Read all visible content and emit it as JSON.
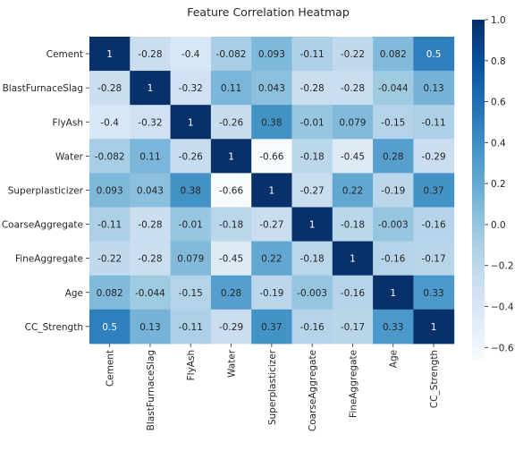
{
  "chart_data": {
    "type": "heatmap",
    "title": "Feature Correlation Heatmap",
    "row_labels": [
      "Cement",
      "BlastFurnaceSlag",
      "FlyAsh",
      "Water",
      "Superplasticizer",
      "CoarseAggregate",
      "FineAggregate",
      "Age",
      "CC_Strength"
    ],
    "col_labels": [
      "Cement",
      "BlastFurnaceSlag",
      "FlyAsh",
      "Water",
      "Superplasticizer",
      "CoarseAggregate",
      "FineAggregate",
      "Age",
      "CC_Strength"
    ],
    "values": [
      [
        1,
        -0.28,
        -0.4,
        -0.082,
        0.093,
        -0.11,
        -0.22,
        0.082,
        0.5
      ],
      [
        -0.28,
        1,
        -0.32,
        0.11,
        0.043,
        -0.28,
        -0.28,
        -0.044,
        0.13
      ],
      [
        -0.4,
        -0.32,
        1,
        -0.26,
        0.38,
        -0.01,
        0.079,
        -0.15,
        -0.11
      ],
      [
        -0.082,
        0.11,
        -0.26,
        1,
        -0.66,
        -0.18,
        -0.45,
        0.28,
        -0.29
      ],
      [
        0.093,
        0.043,
        0.38,
        -0.66,
        1,
        -0.27,
        0.22,
        -0.19,
        0.37
      ],
      [
        -0.11,
        -0.28,
        -0.01,
        -0.18,
        -0.27,
        1,
        -0.18,
        -0.003,
        -0.16
      ],
      [
        -0.22,
        -0.28,
        0.079,
        -0.45,
        0.22,
        -0.18,
        1,
        -0.16,
        -0.17
      ],
      [
        0.082,
        -0.044,
        -0.15,
        0.28,
        -0.19,
        -0.003,
        -0.16,
        1,
        0.33
      ],
      [
        0.5,
        0.13,
        -0.11,
        -0.29,
        0.37,
        -0.16,
        -0.17,
        0.33,
        1
      ]
    ],
    "value_labels": [
      [
        "1",
        "-0.28",
        "-0.4",
        "-0.082",
        "0.093",
        "-0.11",
        "-0.22",
        "0.082",
        "0.5"
      ],
      [
        "-0.28",
        "1",
        "-0.32",
        "0.11",
        "0.043",
        "-0.28",
        "-0.28",
        "-0.044",
        "0.13"
      ],
      [
        "-0.4",
        "-0.32",
        "1",
        "-0.26",
        "0.38",
        "-0.01",
        "0.079",
        "-0.15",
        "-0.11"
      ],
      [
        "-0.082",
        "0.11",
        "-0.26",
        "1",
        "-0.66",
        "-0.18",
        "-0.45",
        "0.28",
        "-0.29"
      ],
      [
        "0.093",
        "0.043",
        "0.38",
        "-0.66",
        "1",
        "-0.27",
        "0.22",
        "-0.19",
        "0.37"
      ],
      [
        "-0.11",
        "-0.28",
        "-0.01",
        "-0.18",
        "-0.27",
        "1",
        "-0.18",
        "-0.003",
        "-0.16"
      ],
      [
        "-0.22",
        "-0.28",
        "0.079",
        "-0.45",
        "0.22",
        "-0.18",
        "1",
        "-0.16",
        "-0.17"
      ],
      [
        "0.082",
        "-0.044",
        "-0.15",
        "0.28",
        "-0.19",
        "-0.003",
        "-0.16",
        "1",
        "0.33"
      ],
      [
        "0.5",
        "0.13",
        "-0.11",
        "-0.29",
        "0.37",
        "-0.16",
        "-0.17",
        "0.33",
        "1"
      ]
    ],
    "colormap": "Blues",
    "colormap_stops": [
      "#f7fbff",
      "#deebf7",
      "#c6dbef",
      "#9ecae1",
      "#6baed6",
      "#4292c6",
      "#2171b5",
      "#08519c",
      "#08306b"
    ],
    "vmin": -0.66,
    "vmax": 1.0,
    "colorbar_ticks": [
      1.0,
      0.8,
      0.6,
      0.4,
      0.2,
      0.0,
      -0.2,
      -0.4,
      -0.6
    ],
    "colorbar_tick_labels": [
      "1.0",
      "0.8",
      "0.6",
      "0.4",
      "0.2",
      "0.0",
      "−0.2",
      "−0.4",
      "−0.6"
    ]
  }
}
